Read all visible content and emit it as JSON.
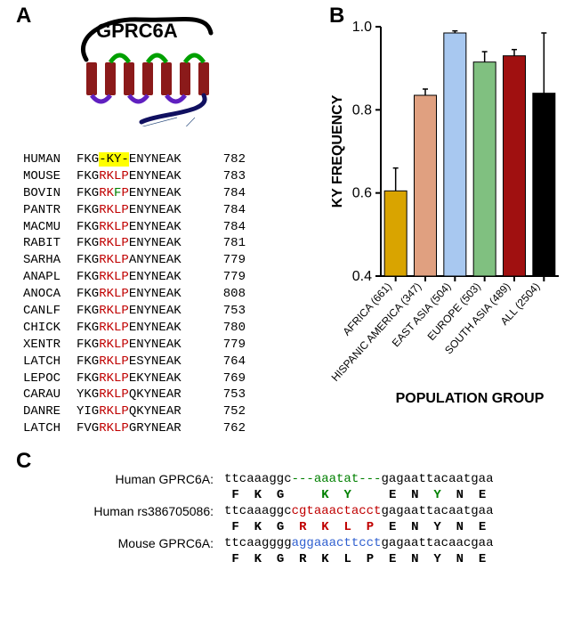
{
  "panelA": {
    "label": "A",
    "title": "GPRC6A",
    "diagram": {
      "tail_color": "#000000",
      "helix_color": "#8b1a1a",
      "loop_top_color": "#00a000",
      "loop_bot_color": "#6020c0",
      "ctail_color": "#101060",
      "helix_count": 7
    },
    "alignment": [
      {
        "sp": "HUMAN",
        "segs": [
          {
            "t": "FKG",
            "c": "black"
          },
          {
            "t": "-KY-",
            "c": "black",
            "hi": true
          },
          {
            "t": "ENYNEAK",
            "c": "black"
          }
        ],
        "n": "782"
      },
      {
        "sp": "MOUSE",
        "segs": [
          {
            "t": "FKG",
            "c": "black"
          },
          {
            "t": "RKLP",
            "c": "red"
          },
          {
            "t": "ENYNEAK",
            "c": "black"
          }
        ],
        "n": "783"
      },
      {
        "sp": "BOVIN",
        "segs": [
          {
            "t": "FKG",
            "c": "black"
          },
          {
            "t": "RK",
            "c": "red"
          },
          {
            "t": "F",
            "c": "green"
          },
          {
            "t": "P",
            "c": "red"
          },
          {
            "t": "ENYNEAK",
            "c": "black"
          }
        ],
        "n": "784"
      },
      {
        "sp": "PANTR",
        "segs": [
          {
            "t": "FKG",
            "c": "black"
          },
          {
            "t": "RKLP",
            "c": "red"
          },
          {
            "t": "ENYNEAK",
            "c": "black"
          }
        ],
        "n": "784"
      },
      {
        "sp": "MACMU",
        "segs": [
          {
            "t": "FKG",
            "c": "black"
          },
          {
            "t": "RKLP",
            "c": "red"
          },
          {
            "t": "ENYNEAK",
            "c": "black"
          }
        ],
        "n": "784"
      },
      {
        "sp": "RABIT",
        "segs": [
          {
            "t": "FKG",
            "c": "black"
          },
          {
            "t": "RKLP",
            "c": "red"
          },
          {
            "t": "ENYNEAK",
            "c": "black"
          }
        ],
        "n": "781"
      },
      {
        "sp": "SARHA",
        "segs": [
          {
            "t": "FKG",
            "c": "black"
          },
          {
            "t": "RKLP",
            "c": "red"
          },
          {
            "t": "ANYNEAK",
            "c": "black"
          }
        ],
        "n": "779"
      },
      {
        "sp": "ANAPL",
        "segs": [
          {
            "t": "FKG",
            "c": "black"
          },
          {
            "t": "RKLP",
            "c": "red"
          },
          {
            "t": "ENYNEAK",
            "c": "black"
          }
        ],
        "n": "779"
      },
      {
        "sp": "ANOCA",
        "segs": [
          {
            "t": "FKG",
            "c": "black"
          },
          {
            "t": "RKLP",
            "c": "red"
          },
          {
            "t": "ENYNEAK",
            "c": "black"
          }
        ],
        "n": "808"
      },
      {
        "sp": "CANLF",
        "segs": [
          {
            "t": "FKG",
            "c": "black"
          },
          {
            "t": "RKLP",
            "c": "red"
          },
          {
            "t": "ENYNEAK",
            "c": "black"
          }
        ],
        "n": "753"
      },
      {
        "sp": "CHICK",
        "segs": [
          {
            "t": "FKG",
            "c": "black"
          },
          {
            "t": "RKLP",
            "c": "red"
          },
          {
            "t": "ENYNEAK",
            "c": "black"
          }
        ],
        "n": "780"
      },
      {
        "sp": "XENTR",
        "segs": [
          {
            "t": "FKG",
            "c": "black"
          },
          {
            "t": "RKLP",
            "c": "red"
          },
          {
            "t": "ENYNEAK",
            "c": "black"
          }
        ],
        "n": "779"
      },
      {
        "sp": "LATCH",
        "segs": [
          {
            "t": "FKG",
            "c": "black"
          },
          {
            "t": "RKLP",
            "c": "red"
          },
          {
            "t": "ESYNEAK",
            "c": "black"
          }
        ],
        "n": "764"
      },
      {
        "sp": "LEPOC",
        "segs": [
          {
            "t": "FKG",
            "c": "black"
          },
          {
            "t": "RKLP",
            "c": "red"
          },
          {
            "t": "EKYNEAK",
            "c": "black"
          }
        ],
        "n": "769"
      },
      {
        "sp": "CARAU",
        "segs": [
          {
            "t": "YKG",
            "c": "black"
          },
          {
            "t": "RKLP",
            "c": "red"
          },
          {
            "t": "QKYNEAR",
            "c": "black"
          }
        ],
        "n": "753"
      },
      {
        "sp": "DANRE",
        "segs": [
          {
            "t": "YIG",
            "c": "black"
          },
          {
            "t": "RKLP",
            "c": "red"
          },
          {
            "t": "QKYNEAR",
            "c": "black"
          }
        ],
        "n": "752"
      },
      {
        "sp": "LATCH",
        "segs": [
          {
            "t": "FVG",
            "c": "black"
          },
          {
            "t": "RKLP",
            "c": "red"
          },
          {
            "t": "GRYNEAR",
            "c": "black"
          }
        ],
        "n": "762"
      }
    ]
  },
  "panelB": {
    "label": "B",
    "ylabel": "KY FREQUENCY",
    "xlabel": "POPULATION GROUP",
    "ylim": [
      0.4,
      1.0
    ],
    "yticks": [
      0.4,
      0.6,
      0.8,
      1.0
    ],
    "axis_color": "#000000",
    "axis_width": 2,
    "tick_fontsize": 16,
    "label_fontsize": 16,
    "label_fontweight": "bold",
    "bar_width": 0.75,
    "error_cap_width": 6,
    "bars": [
      {
        "label": "AFRICA (661)",
        "value": 0.605,
        "err": 0.055,
        "color": "#d9a400"
      },
      {
        "label": "HISPANIC AMERICA (347)",
        "value": 0.835,
        "err": 0.015,
        "color": "#e0a080"
      },
      {
        "label": "EAST ASIA (504)",
        "value": 0.985,
        "err": 0.005,
        "color": "#a8c8f0"
      },
      {
        "label": "EUROPE (503)",
        "value": 0.915,
        "err": 0.025,
        "color": "#80c080"
      },
      {
        "label": "SOUTH ASIA (489)",
        "value": 0.93,
        "err": 0.015,
        "color": "#a01010"
      },
      {
        "label": "ALL (2504)",
        "value": 0.84,
        "err": 0.145,
        "color": "#000000"
      }
    ]
  },
  "panelC": {
    "label": "C",
    "rows": [
      {
        "name": "Human GPRC6A:",
        "nt": [
          {
            "t": "ttcaaaggc",
            "c": "black"
          },
          {
            "t": "---aaatat---",
            "c": "green"
          },
          {
            "t": "gagaattacaatgaa",
            "c": "black"
          }
        ],
        "aa": " F  K  G     K  Y     E  N  Y  N  E",
        "aa_colors": {
          "K": "green",
          "Y": "green"
        }
      },
      {
        "name": "Human rs386705086:",
        "nt": [
          {
            "t": "ttcaaaggc",
            "c": "black"
          },
          {
            "t": "cgtaaactacct",
            "c": "red"
          },
          {
            "t": "gagaattacaatgaa",
            "c": "black"
          }
        ],
        "aa": " F  K  G  R  K  L  P  E  N  Y  N  E",
        "aa_colors": {
          "R": "red",
          "K2": "red",
          "L": "red",
          "P": "red"
        }
      },
      {
        "name": "Mouse GPRC6A:",
        "nt": [
          {
            "t": "ttcaagggg",
            "c": "black"
          },
          {
            "t": "aggaaacttcct",
            "c": "blue"
          },
          {
            "t": "gagaattacaacgaa",
            "c": "black"
          }
        ],
        "aa": " F  K  G  R  K  L  P  E  N  Y  N  E",
        "aa_colors": {}
      }
    ]
  }
}
